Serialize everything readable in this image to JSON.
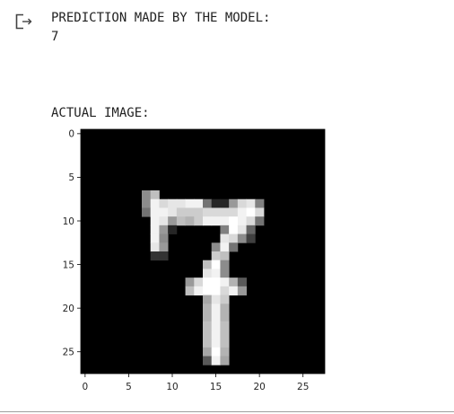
{
  "output": {
    "icon": "output-redirect-icon",
    "prediction_header": "PREDICTION MADE BY THE MODEL:",
    "prediction_value": "7",
    "image_header": "ACTUAL IMAGE:"
  },
  "chart_data": {
    "type": "heatmap",
    "colormap": "gray",
    "shape": [
      28,
      28
    ],
    "title": "",
    "xlabel": "",
    "ylabel": "",
    "x_ticks": [
      "0",
      "5",
      "10",
      "15",
      "20",
      "25"
    ],
    "y_ticks": [
      "0",
      "5",
      "10",
      "15",
      "20",
      "25"
    ],
    "x_tick_values": [
      0,
      5,
      10,
      15,
      20,
      25
    ],
    "y_tick_values": [
      0,
      5,
      10,
      15,
      20,
      25
    ],
    "pixels": [
      [
        7,
        7,
        0.55
      ],
      [
        8,
        7,
        0.75
      ],
      [
        7,
        8,
        0.55
      ],
      [
        8,
        8,
        0.95
      ],
      [
        9,
        8,
        0.85
      ],
      [
        10,
        8,
        0.9
      ],
      [
        11,
        8,
        0.9
      ],
      [
        12,
        8,
        0.95
      ],
      [
        13,
        8,
        0.95
      ],
      [
        14,
        8,
        0.45
      ],
      [
        15,
        8,
        0.15
      ],
      [
        16,
        8,
        0.15
      ],
      [
        17,
        8,
        0.6
      ],
      [
        18,
        8,
        0.85
      ],
      [
        19,
        8,
        0.9
      ],
      [
        20,
        8,
        0.5
      ],
      [
        7,
        9,
        0.45
      ],
      [
        8,
        9,
        0.95
      ],
      [
        9,
        9,
        0.95
      ],
      [
        10,
        9,
        0.9
      ],
      [
        11,
        9,
        0.8
      ],
      [
        12,
        9,
        0.8
      ],
      [
        13,
        9,
        0.8
      ],
      [
        14,
        9,
        0.85
      ],
      [
        15,
        9,
        0.85
      ],
      [
        16,
        9,
        0.85
      ],
      [
        17,
        9,
        0.85
      ],
      [
        18,
        9,
        0.95
      ],
      [
        19,
        9,
        1.0
      ],
      [
        20,
        9,
        0.85
      ],
      [
        8,
        10,
        0.95
      ],
      [
        9,
        10,
        0.9
      ],
      [
        10,
        10,
        0.6
      ],
      [
        11,
        10,
        0.75
      ],
      [
        12,
        10,
        0.7
      ],
      [
        13,
        10,
        0.8
      ],
      [
        14,
        10,
        0.95
      ],
      [
        15,
        10,
        0.95
      ],
      [
        16,
        10,
        0.95
      ],
      [
        17,
        10,
        1.0
      ],
      [
        18,
        10,
        0.95
      ],
      [
        19,
        10,
        0.85
      ],
      [
        20,
        10,
        0.45
      ],
      [
        8,
        11,
        0.95
      ],
      [
        9,
        11,
        0.6
      ],
      [
        10,
        11,
        0.15
      ],
      [
        16,
        11,
        0.5
      ],
      [
        17,
        11,
        1.0
      ],
      [
        18,
        11,
        0.9
      ],
      [
        19,
        11,
        0.4
      ],
      [
        8,
        12,
        0.95
      ],
      [
        9,
        12,
        0.55
      ],
      [
        16,
        12,
        0.9
      ],
      [
        17,
        12,
        0.85
      ],
      [
        18,
        12,
        0.55
      ],
      [
        19,
        12,
        0.25
      ],
      [
        8,
        13,
        0.9
      ],
      [
        9,
        13,
        0.6
      ],
      [
        15,
        13,
        0.55
      ],
      [
        16,
        13,
        0.95
      ],
      [
        17,
        13,
        0.45
      ],
      [
        8,
        14,
        0.2
      ],
      [
        9,
        14,
        0.2
      ],
      [
        15,
        14,
        0.8
      ],
      [
        16,
        14,
        0.75
      ],
      [
        14,
        15,
        0.75
      ],
      [
        15,
        15,
        1.0
      ],
      [
        16,
        15,
        0.55
      ],
      [
        14,
        16,
        0.9
      ],
      [
        15,
        16,
        0.95
      ],
      [
        16,
        16,
        0.55
      ],
      [
        12,
        17,
        0.6
      ],
      [
        13,
        17,
        0.85
      ],
      [
        14,
        17,
        1.0
      ],
      [
        15,
        17,
        1.0
      ],
      [
        16,
        17,
        0.95
      ],
      [
        17,
        17,
        0.7
      ],
      [
        18,
        17,
        0.35
      ],
      [
        12,
        18,
        0.75
      ],
      [
        13,
        18,
        0.95
      ],
      [
        14,
        18,
        1.0
      ],
      [
        15,
        18,
        1.0
      ],
      [
        16,
        18,
        0.85
      ],
      [
        17,
        18,
        0.95
      ],
      [
        18,
        18,
        0.6
      ],
      [
        14,
        19,
        0.65
      ],
      [
        15,
        19,
        0.9
      ],
      [
        16,
        19,
        0.8
      ],
      [
        14,
        20,
        0.7
      ],
      [
        15,
        20,
        0.95
      ],
      [
        16,
        20,
        0.7
      ],
      [
        14,
        21,
        0.7
      ],
      [
        15,
        21,
        0.95
      ],
      [
        16,
        21,
        0.7
      ],
      [
        14,
        22,
        0.75
      ],
      [
        15,
        22,
        0.95
      ],
      [
        16,
        22,
        0.75
      ],
      [
        14,
        23,
        0.75
      ],
      [
        15,
        23,
        0.95
      ],
      [
        16,
        23,
        0.75
      ],
      [
        14,
        24,
        0.75
      ],
      [
        15,
        24,
        0.95
      ],
      [
        16,
        24,
        0.75
      ],
      [
        14,
        25,
        0.65
      ],
      [
        15,
        25,
        1.0
      ],
      [
        16,
        25,
        0.7
      ],
      [
        14,
        26,
        0.35
      ],
      [
        15,
        26,
        0.95
      ],
      [
        16,
        26,
        0.65
      ]
    ]
  }
}
